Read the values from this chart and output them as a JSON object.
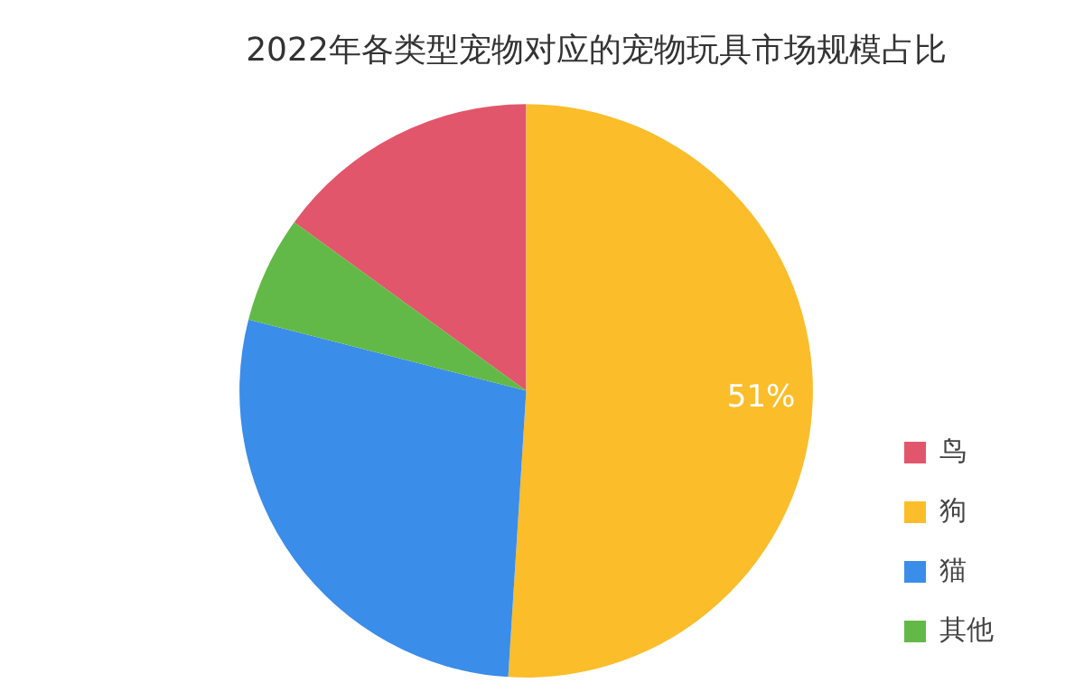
{
  "chart_data": {
    "type": "pie",
    "title": "2022年各类型宠物对应的宠物玩具市场规模占比",
    "categories": [
      "鸟",
      "狗",
      "猫",
      "其他"
    ],
    "values": [
      15,
      51,
      28,
      6
    ],
    "colors": [
      "#e2566b",
      "#fbbd2a",
      "#3a8de8",
      "#63b947"
    ],
    "value_labels": [
      null,
      "51%",
      null,
      null
    ],
    "legend": "bottom right"
  }
}
